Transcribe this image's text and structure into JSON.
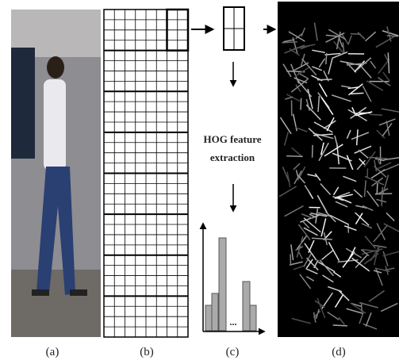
{
  "panels": [
    {
      "label": "(a)"
    },
    {
      "label": "(b)"
    },
    {
      "label": "(c)"
    },
    {
      "label": "(d)"
    }
  ],
  "step": {
    "lines": [
      "HOG feature",
      "extraction"
    ],
    "ellipsis": "..."
  }
}
